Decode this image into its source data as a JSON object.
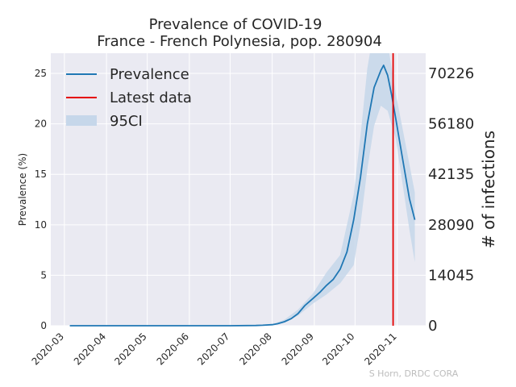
{
  "chart_data": {
    "type": "line",
    "title": "Prevalence of COVID-19",
    "subtitle": "France - French Polynesia, pop. 280904",
    "xlabel": "",
    "ylabel": "Prevalence (%)",
    "ylabel_right": "# of infections",
    "ylim": [
      0,
      27
    ],
    "x_ticks": [
      "2020-03",
      "2020-04",
      "2020-05",
      "2020-06",
      "2020-07",
      "2020-08",
      "2020-09",
      "2020-10",
      "2020-11"
    ],
    "y_ticks": [
      0,
      5,
      10,
      15,
      20,
      25
    ],
    "y_ticks_right": [
      "0",
      "14045",
      "28090",
      "42135",
      "56180",
      "70226"
    ],
    "legend": {
      "position": "top-left",
      "items": [
        "Prevalence",
        "Latest data",
        "95CI"
      ]
    },
    "grid": true,
    "colors": {
      "line": "#1f77b4",
      "latest": "#e50000",
      "ci": "#c6d7ea",
      "background": "#eaeaf2"
    },
    "series": [
      {
        "name": "Prevalence",
        "x": [
          "2020-03-05",
          "2020-04-01",
          "2020-05-01",
          "2020-06-01",
          "2020-07-01",
          "2020-07-20",
          "2020-07-25",
          "2020-08-01",
          "2020-08-05",
          "2020-08-10",
          "2020-08-15",
          "2020-08-20",
          "2020-08-25",
          "2020-08-31",
          "2020-09-05",
          "2020-09-10",
          "2020-09-15",
          "2020-09-20",
          "2020-09-25",
          "2020-09-30",
          "2020-10-05",
          "2020-10-10",
          "2020-10-15",
          "2020-10-20",
          "2020-10-22",
          "2020-10-25",
          "2020-10-28",
          "2020-10-31",
          "2020-11-05",
          "2020-11-10",
          "2020-11-14"
        ],
        "y": [
          0,
          0,
          0,
          0,
          0,
          0.02,
          0.05,
          0.1,
          0.2,
          0.4,
          0.7,
          1.2,
          2.0,
          2.7,
          3.3,
          4.0,
          4.6,
          5.6,
          7.3,
          10.5,
          14.7,
          20.0,
          23.6,
          25.3,
          25.8,
          24.8,
          22.8,
          20.5,
          16.5,
          12.6,
          10.5
        ]
      }
    ],
    "ci": {
      "name": "95CI",
      "x": [
        "2020-03-05",
        "2020-07-20",
        "2020-08-01",
        "2020-08-10",
        "2020-08-20",
        "2020-08-31",
        "2020-09-10",
        "2020-09-20",
        "2020-09-30",
        "2020-10-05",
        "2020-10-10",
        "2020-10-15",
        "2020-10-20",
        "2020-10-25",
        "2020-10-31",
        "2020-11-05",
        "2020-11-10",
        "2020-11-14"
      ],
      "lower": [
        0,
        0,
        0.05,
        0.3,
        1.0,
        2.2,
        3.1,
        4.2,
        6.0,
        10.0,
        15.5,
        19.8,
        21.8,
        21.3,
        18.5,
        14.0,
        9.5,
        6.3
      ],
      "upper": [
        0,
        0.05,
        0.15,
        0.6,
        1.6,
        3.2,
        5.3,
        7.0,
        13.0,
        18.8,
        25.5,
        29.5,
        29.5,
        28.0,
        23.0,
        19.5,
        16.0,
        13.2
      ]
    },
    "latest_data": "2020-10-29",
    "credit": "S Horn, DRDC CORA"
  }
}
